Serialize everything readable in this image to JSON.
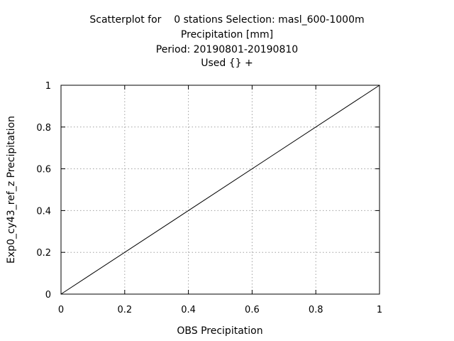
{
  "chart_data": {
    "type": "scatter",
    "title_lines": [
      "Scatterplot for    0 stations Selection: masl_600-1000m",
      "Precipitation [mm]",
      "Period: 20190801-20190810",
      "Used {} +"
    ],
    "xlabel": "OBS Precipitation",
    "ylabel": "Exp0_cy43_ref_z Precipitation",
    "xlim": [
      0,
      1
    ],
    "ylim": [
      0,
      1
    ],
    "x_ticks": [
      "0",
      "0.2",
      "0.4",
      "0.6",
      "0.8",
      "1"
    ],
    "y_ticks": [
      "0",
      "0.2",
      "0.4",
      "0.6",
      "0.8",
      "1"
    ],
    "grid": true,
    "reference_line": {
      "x": [
        0,
        1
      ],
      "y": [
        0,
        1
      ]
    },
    "series": []
  }
}
